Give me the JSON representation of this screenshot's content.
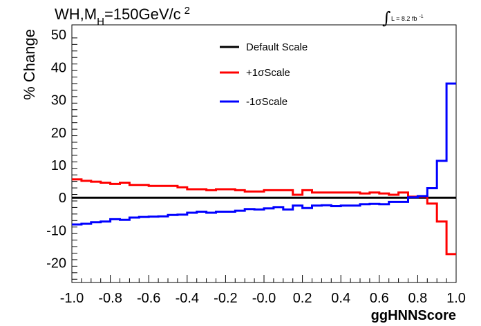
{
  "chart_data": {
    "type": "line",
    "style": "step",
    "title": {
      "main": "WH,M",
      "sub": "H",
      "rest": "=150GeV/c",
      "sup": "2"
    },
    "lumi_label": {
      "integral": "∫",
      "text": "L = 8.2 fb",
      "sup": "-1"
    },
    "xlabel": "ggHNNScore",
    "ylabel": "% Change",
    "xlim": [
      -1.0,
      1.0
    ],
    "ylim": [
      -26,
      53
    ],
    "x_ticks": [
      -1.0,
      -0.8,
      -0.6,
      -0.4,
      -0.2,
      0.0,
      0.2,
      0.4,
      0.6,
      0.8,
      1.0
    ],
    "x_tick_labels": [
      "-1.0",
      "-0.8",
      "-0.6",
      "-0.4",
      "-0.2",
      "-0.0",
      "0.2",
      "0.4",
      "0.6",
      "0.8",
      "1.0"
    ],
    "y_ticks": [
      -20,
      -10,
      0,
      10,
      20,
      30,
      40,
      50
    ],
    "y_tick_labels": [
      "-20",
      "-10",
      "0",
      "10",
      "20",
      "30",
      "40",
      "50"
    ],
    "bin_edges": [
      -1.0,
      -0.95,
      -0.9,
      -0.85,
      -0.8,
      -0.75,
      -0.7,
      -0.65,
      -0.6,
      -0.55,
      -0.5,
      -0.45,
      -0.4,
      -0.35,
      -0.3,
      -0.25,
      -0.2,
      -0.15,
      -0.1,
      -0.05,
      0.0,
      0.05,
      0.1,
      0.15,
      0.2,
      0.25,
      0.3,
      0.35,
      0.4,
      0.45,
      0.5,
      0.55,
      0.6,
      0.65,
      0.7,
      0.75,
      0.8,
      0.85,
      0.9,
      0.95,
      1.0
    ],
    "legend_position": "top-center",
    "series": [
      {
        "name": "Default Scale",
        "color": "#000000",
        "values": [
          0,
          0,
          0,
          0,
          0,
          0,
          0,
          0,
          0,
          0,
          0,
          0,
          0,
          0,
          0,
          0,
          0,
          0,
          0,
          0,
          0,
          0,
          0,
          0,
          0,
          0,
          0,
          0,
          0,
          0,
          0,
          0,
          0,
          0,
          0,
          0,
          0,
          0,
          0,
          0
        ]
      },
      {
        "name": "+1σScale",
        "color": "#ff0000",
        "values": [
          5.6,
          5.2,
          4.9,
          4.6,
          4.2,
          4.6,
          3.9,
          3.9,
          3.6,
          3.6,
          3.6,
          3.2,
          2.6,
          2.6,
          2.3,
          2.6,
          2.6,
          2.3,
          1.9,
          1.9,
          2.3,
          2.3,
          2.3,
          0.9,
          2.3,
          1.6,
          1.6,
          1.6,
          1.6,
          1.6,
          1.3,
          1.6,
          1.3,
          0.9,
          1.6,
          0.3,
          0.3,
          -1.8,
          -7.3,
          -17.3
        ]
      },
      {
        "name": "-1σScale",
        "color": "#0000ff",
        "values": [
          -8.2,
          -8.0,
          -7.5,
          -7.3,
          -6.6,
          -6.8,
          -6.1,
          -5.9,
          -5.8,
          -5.7,
          -5.3,
          -5.2,
          -4.6,
          -4.3,
          -4.6,
          -4.3,
          -4.3,
          -4.0,
          -3.5,
          -3.6,
          -3.3,
          -2.9,
          -3.6,
          -2.4,
          -3.2,
          -2.4,
          -2.3,
          -2.6,
          -2.4,
          -2.4,
          -2.0,
          -1.9,
          -2.0,
          -1.3,
          -1.3,
          0.1,
          0.5,
          2.9,
          11.3,
          35.0
        ]
      }
    ]
  }
}
